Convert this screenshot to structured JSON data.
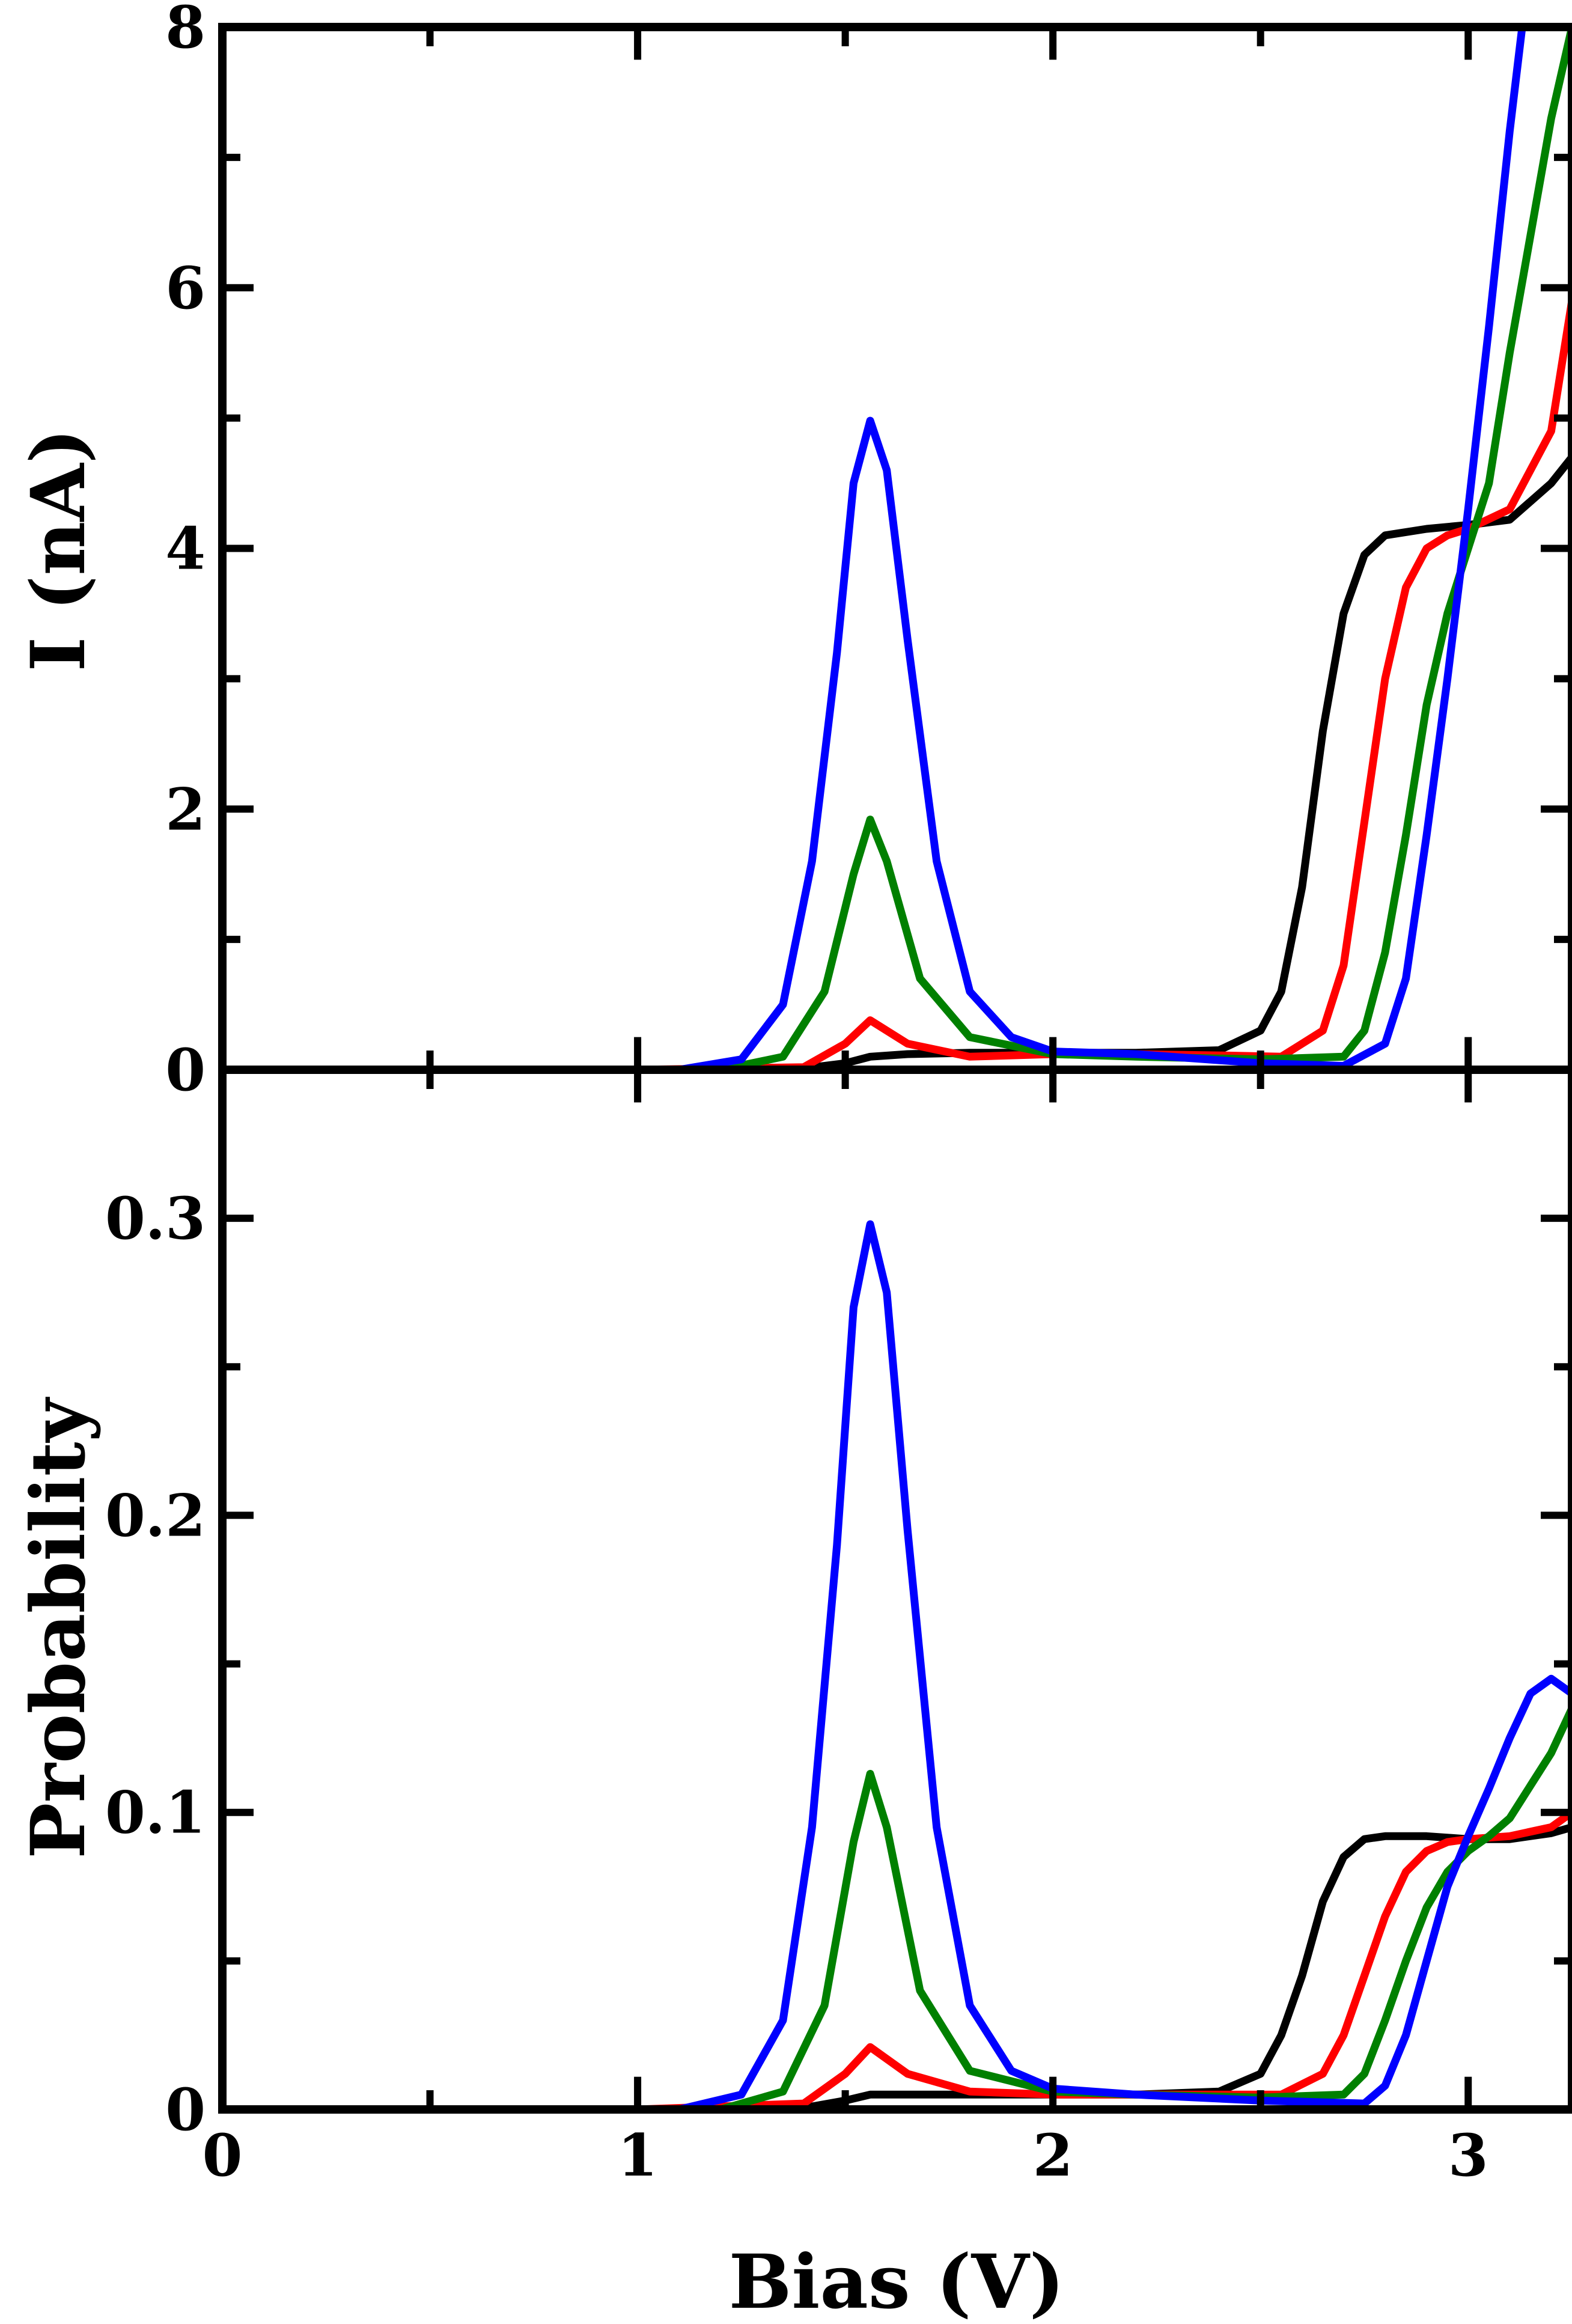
{
  "colors": {
    "black": "#000000",
    "red": "#ff0000",
    "green": "#008000",
    "blue": "#0000ff"
  },
  "chart_data": [
    {
      "type": "line",
      "panel": "top",
      "title": "",
      "xlabel": "",
      "ylabel": "I (nA)",
      "xlim": [
        0,
        3.25
      ],
      "ylim": [
        0,
        8
      ],
      "x_major_ticks": [
        0,
        1,
        2,
        3
      ],
      "x_minor_ticks": [
        0.5,
        1.5,
        2.5
      ],
      "x_tick_labels_shown": false,
      "y_major_ticks": [
        0,
        2,
        4,
        6,
        8
      ],
      "y_minor_ticks": [
        1,
        3,
        5,
        7
      ],
      "y_tick_labels": [
        "0",
        "2",
        "4",
        "6",
        "8"
      ],
      "grid": false,
      "series": [
        {
          "name": "black",
          "color": "#000000",
          "x": [
            0,
            1.0,
            1.4,
            1.5,
            1.56,
            1.65,
            1.8,
            2.0,
            2.2,
            2.4,
            2.5,
            2.55,
            2.6,
            2.65,
            2.7,
            2.75,
            2.8,
            2.9,
            3.0,
            3.1,
            3.2,
            3.25
          ],
          "values": [
            0,
            0,
            0.01,
            0.05,
            0.1,
            0.12,
            0.13,
            0.13,
            0.13,
            0.15,
            0.3,
            0.6,
            1.4,
            2.6,
            3.5,
            3.95,
            4.1,
            4.15,
            4.18,
            4.22,
            4.5,
            4.7
          ]
        },
        {
          "name": "red",
          "color": "#ff0000",
          "x": [
            0,
            1.0,
            1.4,
            1.5,
            1.56,
            1.65,
            1.8,
            2.0,
            2.2,
            2.4,
            2.55,
            2.65,
            2.7,
            2.75,
            2.8,
            2.85,
            2.9,
            2.95,
            3.0,
            3.1,
            3.2,
            3.25
          ],
          "values": [
            0,
            0,
            0.02,
            0.2,
            0.38,
            0.2,
            0.1,
            0.12,
            0.12,
            0.11,
            0.1,
            0.3,
            0.8,
            1.9,
            3.0,
            3.7,
            4.0,
            4.1,
            4.15,
            4.3,
            4.9,
            5.9
          ]
        },
        {
          "name": "green",
          "color": "#008000",
          "x": [
            0,
            1.2,
            1.35,
            1.45,
            1.52,
            1.56,
            1.6,
            1.68,
            1.8,
            2.0,
            2.2,
            2.5,
            2.7,
            2.75,
            2.8,
            2.85,
            2.9,
            2.95,
            3.0,
            3.05,
            3.1,
            3.2,
            3.25
          ],
          "values": [
            0,
            0,
            0.1,
            0.6,
            1.5,
            1.92,
            1.6,
            0.7,
            0.25,
            0.12,
            0.1,
            0.08,
            0.1,
            0.3,
            0.9,
            1.8,
            2.8,
            3.5,
            4.0,
            4.5,
            5.5,
            7.3,
            8.0
          ]
        },
        {
          "name": "blue",
          "color": "#0000ff",
          "x": [
            0,
            1.1,
            1.25,
            1.35,
            1.42,
            1.48,
            1.52,
            1.56,
            1.6,
            1.65,
            1.72,
            1.8,
            1.9,
            2.0,
            2.2,
            2.5,
            2.7,
            2.8,
            2.85,
            2.9,
            2.95,
            3.0,
            3.05,
            3.1,
            3.13
          ],
          "values": [
            0,
            0,
            0.08,
            0.5,
            1.6,
            3.2,
            4.5,
            4.98,
            4.6,
            3.3,
            1.6,
            0.6,
            0.25,
            0.14,
            0.12,
            0.05,
            0.03,
            0.2,
            0.7,
            1.8,
            3.0,
            4.3,
            5.7,
            7.2,
            8.0
          ]
        }
      ]
    },
    {
      "type": "line",
      "panel": "bottom",
      "title": "",
      "xlabel": "Bias (V)",
      "ylabel": "Probability",
      "xlim": [
        0,
        3.25
      ],
      "ylim": [
        0,
        0.35
      ],
      "x_major_ticks": [
        0,
        1,
        2,
        3
      ],
      "x_minor_ticks": [
        0.5,
        1.5,
        2.5
      ],
      "x_tick_labels": [
        "0",
        "1",
        "2",
        "3"
      ],
      "y_major_ticks": [
        0,
        0.1,
        0.2,
        0.3
      ],
      "y_minor_ticks": [
        0.05,
        0.15,
        0.25
      ],
      "y_tick_labels": [
        "0",
        "0.1",
        "0.2",
        "0.3"
      ],
      "grid": false,
      "series": [
        {
          "name": "black",
          "color": "#000000",
          "x": [
            0,
            1.0,
            1.4,
            1.5,
            1.56,
            1.65,
            1.8,
            2.0,
            2.2,
            2.4,
            2.5,
            2.55,
            2.6,
            2.65,
            2.7,
            2.75,
            2.8,
            2.9,
            3.0,
            3.1,
            3.2,
            3.25
          ],
          "values": [
            0,
            0,
            0.0005,
            0.003,
            0.005,
            0.005,
            0.005,
            0.005,
            0.005,
            0.006,
            0.012,
            0.025,
            0.045,
            0.07,
            0.085,
            0.091,
            0.092,
            0.092,
            0.091,
            0.091,
            0.093,
            0.095
          ]
        },
        {
          "name": "red",
          "color": "#ff0000",
          "x": [
            0,
            1.0,
            1.4,
            1.5,
            1.56,
            1.65,
            1.8,
            2.0,
            2.2,
            2.4,
            2.55,
            2.65,
            2.7,
            2.75,
            2.8,
            2.85,
            2.9,
            2.95,
            3.0,
            3.1,
            3.2,
            3.25
          ],
          "values": [
            0,
            0,
            0.002,
            0.012,
            0.021,
            0.012,
            0.006,
            0.005,
            0.005,
            0.005,
            0.005,
            0.012,
            0.025,
            0.045,
            0.065,
            0.08,
            0.087,
            0.09,
            0.091,
            0.092,
            0.095,
            0.1
          ]
        },
        {
          "name": "green",
          "color": "#008000",
          "x": [
            0,
            1.2,
            1.35,
            1.45,
            1.52,
            1.56,
            1.6,
            1.68,
            1.8,
            2.0,
            2.2,
            2.5,
            2.7,
            2.75,
            2.8,
            2.85,
            2.9,
            2.95,
            3.0,
            3.05,
            3.1,
            3.2,
            3.25
          ],
          "values": [
            0,
            0,
            0.006,
            0.035,
            0.09,
            0.113,
            0.095,
            0.04,
            0.013,
            0.006,
            0.005,
            0.004,
            0.005,
            0.012,
            0.03,
            0.05,
            0.068,
            0.08,
            0.087,
            0.092,
            0.098,
            0.12,
            0.135
          ]
        },
        {
          "name": "blue",
          "color": "#0000ff",
          "x": [
            0,
            1.1,
            1.25,
            1.35,
            1.42,
            1.48,
            1.52,
            1.56,
            1.6,
            1.65,
            1.72,
            1.8,
            1.9,
            2.0,
            2.2,
            2.5,
            2.75,
            2.8,
            2.85,
            2.9,
            2.95,
            3.0,
            3.05,
            3.1,
            3.15,
            3.2,
            3.25
          ],
          "values": [
            0,
            0,
            0.005,
            0.03,
            0.095,
            0.19,
            0.27,
            0.298,
            0.275,
            0.195,
            0.095,
            0.035,
            0.013,
            0.007,
            0.005,
            0.003,
            0.002,
            0.008,
            0.025,
            0.05,
            0.075,
            0.092,
            0.108,
            0.125,
            0.14,
            0.145,
            0.14
          ]
        }
      ]
    }
  ]
}
